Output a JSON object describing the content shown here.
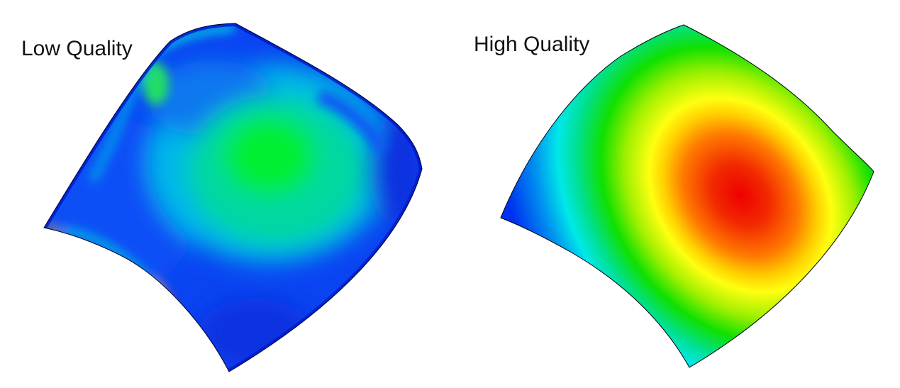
{
  "panels": [
    {
      "label": "Low Quality"
    },
    {
      "label": "High Quality"
    }
  ],
  "colors": {
    "background": "#ffffff",
    "scale_low": "#0033ff",
    "scale_mid": "#00e600",
    "scale_high": "#ee0000"
  }
}
